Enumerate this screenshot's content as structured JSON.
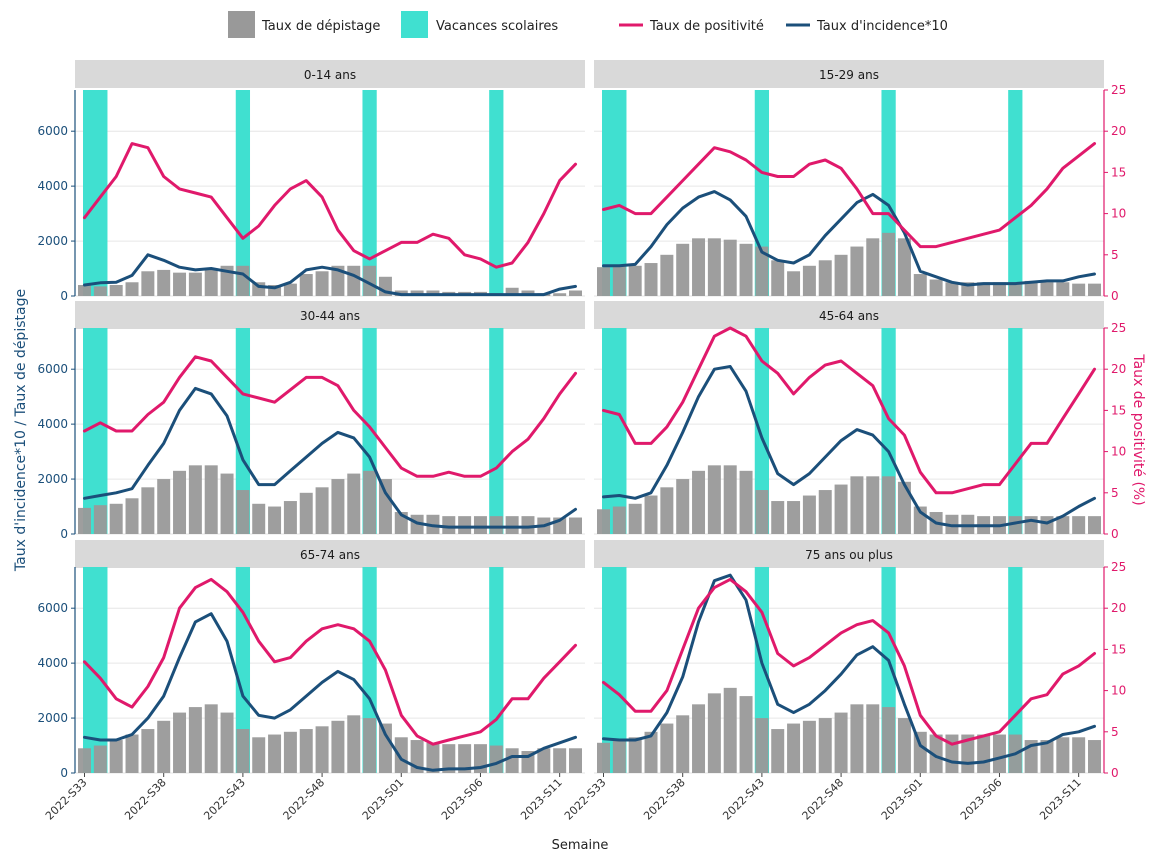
{
  "colors": {
    "screening": "#999999",
    "holidays": "#40E0D0",
    "positivity": "#E0196B",
    "incidence": "#1B4F7A",
    "strip": "#D9D9D9",
    "grid": "#E6E6E6"
  },
  "legend": {
    "screening": "Taux de dépistage",
    "holidays": "Vacances scolaires",
    "positivity": "Taux de positivité",
    "incidence": "Taux d'incidence*10"
  },
  "chart_data": {
    "type": "bar+line",
    "xlabel": "Semaine",
    "ylabel_left": "Taux d'incidence*10 / Taux de dépistage",
    "ylabel_right": "Taux de positivité (%)",
    "ylim_left": [
      0,
      7500
    ],
    "ylim_right": [
      0,
      25
    ],
    "y_ticks_left": [
      0,
      2000,
      4000,
      6000
    ],
    "y_ticks_right": [
      0,
      5,
      10,
      15,
      20,
      25
    ],
    "grid": true,
    "legend_position": "top",
    "x_tick_labels": [
      "2022-S33",
      "2022-S38",
      "2022-S43",
      "2022-S48",
      "2023-S01",
      "2023-S06",
      "2023-S11"
    ],
    "weeks": [
      "2022-S33",
      "2022-S34",
      "2022-S35",
      "2022-S36",
      "2022-S37",
      "2022-S38",
      "2022-S39",
      "2022-S40",
      "2022-S41",
      "2022-S42",
      "2022-S43",
      "2022-S44",
      "2022-S45",
      "2022-S46",
      "2022-S47",
      "2022-S48",
      "2022-S49",
      "2022-S50",
      "2022-S51",
      "2022-S52",
      "2023-S01",
      "2023-S02",
      "2023-S03",
      "2023-S04",
      "2023-S05",
      "2023-S06",
      "2023-S07",
      "2023-S08",
      "2023-S09",
      "2023-S10",
      "2023-S11",
      "2023-S12"
    ],
    "holiday_weeks": [
      [
        "2022-S31",
        "2022-S34"
      ],
      [
        "2022-S43",
        "2022-S43"
      ],
      [
        "2022-S51",
        "2022-S51"
      ],
      [
        "2023-S07",
        "2023-S07"
      ]
    ],
    "panels": [
      {
        "label": "0-14 ans",
        "screening": [
          400,
          350,
          400,
          500,
          900,
          950,
          850,
          850,
          1000,
          1100,
          1100,
          500,
          400,
          450,
          800,
          900,
          1100,
          1100,
          1100,
          700,
          200,
          200,
          200,
          150,
          150,
          150,
          100,
          300,
          200,
          100,
          100,
          200
        ],
        "incidence": [
          400,
          480,
          500,
          750,
          1500,
          1300,
          1050,
          950,
          1000,
          900,
          800,
          350,
          300,
          500,
          950,
          1050,
          950,
          750,
          450,
          150,
          50,
          50,
          50,
          50,
          50,
          50,
          50,
          50,
          50,
          50,
          250,
          350
        ],
        "positivity": [
          9.5,
          12,
          14.5,
          18.5,
          18,
          14.5,
          13,
          12.5,
          12,
          9.5,
          7,
          8.5,
          11,
          13,
          14,
          12,
          8,
          5.5,
          4.5,
          5.5,
          6.5,
          6.5,
          7.5,
          7,
          5,
          4.5,
          3.5,
          4,
          6.5,
          10,
          14,
          16
        ]
      },
      {
        "label": "15-29 ans",
        "screening": [
          1050,
          1100,
          1100,
          1200,
          1500,
          1900,
          2100,
          2100,
          2050,
          1900,
          1800,
          1300,
          900,
          1100,
          1300,
          1500,
          1800,
          2100,
          2300,
          2100,
          800,
          600,
          500,
          500,
          500,
          500,
          500,
          550,
          500,
          500,
          450,
          450
        ],
        "incidence": [
          1100,
          1100,
          1150,
          1800,
          2600,
          3200,
          3600,
          3800,
          3500,
          2900,
          1600,
          1300,
          1200,
          1500,
          2200,
          2800,
          3400,
          3700,
          3300,
          2300,
          900,
          700,
          500,
          400,
          450,
          450,
          450,
          500,
          550,
          550,
          700,
          800
        ],
        "positivity": [
          10.5,
          11,
          10,
          10,
          12,
          14,
          16,
          18,
          17.5,
          16.5,
          15,
          14.5,
          14.5,
          16,
          16.5,
          15.5,
          13,
          10,
          10,
          8,
          6,
          6,
          6.5,
          7,
          7.5,
          8,
          9.5,
          11,
          13,
          15.5,
          17,
          18.5
        ]
      },
      {
        "label": "30-44 ans",
        "screening": [
          950,
          1050,
          1100,
          1300,
          1700,
          2000,
          2300,
          2500,
          2500,
          2200,
          1600,
          1100,
          1000,
          1200,
          1500,
          1700,
          2000,
          2200,
          2300,
          2000,
          800,
          700,
          700,
          650,
          650,
          650,
          650,
          650,
          650,
          600,
          600,
          600
        ],
        "incidence": [
          1300,
          1400,
          1500,
          1650,
          2500,
          3300,
          4500,
          5300,
          5100,
          4300,
          2700,
          1800,
          1800,
          2300,
          2800,
          3300,
          3700,
          3500,
          2800,
          1500,
          700,
          400,
          300,
          250,
          250,
          250,
          250,
          250,
          250,
          300,
          500,
          900
        ],
        "positivity": [
          12.5,
          13.5,
          12.5,
          12.5,
          14.5,
          16,
          19,
          21.5,
          21,
          19,
          17,
          16.5,
          16,
          17.5,
          19,
          19,
          18,
          15,
          13,
          10.5,
          8,
          7,
          7,
          7.5,
          7,
          7,
          8,
          10,
          11.5,
          14,
          17,
          19.5
        ]
      },
      {
        "label": "45-64 ans",
        "screening": [
          900,
          1000,
          1100,
          1400,
          1700,
          2000,
          2300,
          2500,
          2500,
          2300,
          1600,
          1200,
          1200,
          1400,
          1600,
          1800,
          2100,
          2100,
          2100,
          1900,
          1000,
          800,
          700,
          700,
          650,
          650,
          650,
          650,
          650,
          650,
          650,
          650
        ],
        "incidence": [
          1350,
          1400,
          1300,
          1500,
          2500,
          3700,
          5000,
          6000,
          6100,
          5200,
          3500,
          2200,
          1800,
          2200,
          2800,
          3400,
          3800,
          3600,
          3000,
          1800,
          800,
          400,
          300,
          300,
          300,
          300,
          400,
          500,
          400,
          650,
          1000,
          1300
        ],
        "positivity": [
          15,
          14.5,
          11,
          11,
          13,
          16,
          20,
          24,
          25,
          24,
          21,
          19.5,
          17,
          19,
          20.5,
          21,
          19.5,
          18,
          14,
          12,
          7.5,
          5,
          5,
          5.5,
          6,
          6,
          8.5,
          11,
          11,
          14,
          17,
          20
        ]
      },
      {
        "label": "65-74 ans",
        "screening": [
          900,
          1000,
          1200,
          1400,
          1600,
          1900,
          2200,
          2400,
          2500,
          2200,
          1600,
          1300,
          1400,
          1500,
          1600,
          1700,
          1900,
          2100,
          2000,
          1800,
          1300,
          1200,
          1100,
          1050,
          1050,
          1050,
          1000,
          900,
          800,
          900,
          900,
          900
        ],
        "incidence": [
          1300,
          1200,
          1200,
          1400,
          2000,
          2800,
          4200,
          5500,
          5800,
          4800,
          2800,
          2100,
          2000,
          2300,
          2800,
          3300,
          3700,
          3400,
          2700,
          1400,
          500,
          200,
          100,
          150,
          150,
          200,
          350,
          600,
          600,
          900,
          1100,
          1300
        ],
        "positivity": [
          13.5,
          11.5,
          9,
          8,
          10.5,
          14,
          20,
          22.5,
          23.5,
          22,
          19.5,
          16,
          13.5,
          14,
          16,
          17.5,
          18,
          17.5,
          16,
          12.5,
          7,
          4.5,
          3.5,
          4,
          4.5,
          5,
          6.5,
          9,
          9,
          11.5,
          13.5,
          15.5
        ]
      },
      {
        "label": "75 ans ou plus",
        "screening": [
          1100,
          1200,
          1300,
          1500,
          1800,
          2100,
          2500,
          2900,
          3100,
          2800,
          2000,
          1600,
          1800,
          1900,
          2000,
          2200,
          2500,
          2500,
          2400,
          2000,
          1500,
          1400,
          1400,
          1400,
          1400,
          1400,
          1400,
          1200,
          1200,
          1300,
          1300,
          1200
        ],
        "incidence": [
          1250,
          1200,
          1200,
          1350,
          2200,
          3500,
          5500,
          7000,
          7200,
          6300,
          4000,
          2500,
          2200,
          2500,
          3000,
          3600,
          4300,
          4600,
          4100,
          2500,
          1000,
          600,
          400,
          350,
          400,
          550,
          700,
          1000,
          1100,
          1400,
          1500,
          1700
        ],
        "positivity": [
          11,
          9.5,
          7.5,
          7.5,
          10,
          15,
          20,
          22.5,
          23.5,
          22,
          19.5,
          14.5,
          13,
          14,
          15.5,
          17,
          18,
          18.5,
          17,
          13,
          7,
          4.5,
          3.5,
          4,
          4.5,
          5,
          7,
          9,
          9.5,
          12,
          13,
          14.5
        ]
      }
    ]
  }
}
